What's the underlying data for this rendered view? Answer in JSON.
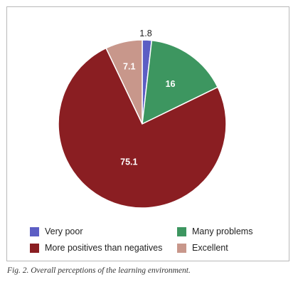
{
  "chart_data": {
    "type": "pie",
    "slices": [
      {
        "label": "Very poor",
        "value": 1.8,
        "value_label": "1.8",
        "color": "#5c5ec4"
      },
      {
        "label": "Many problems",
        "value": 16,
        "value_label": "16",
        "color": "#3d9660"
      },
      {
        "label": "More positives than negatives",
        "value": 75.1,
        "value_label": "75.1",
        "color": "#8a1e22"
      },
      {
        "label": "Excellent",
        "value": 7.1,
        "value_label": "7.1",
        "color": "#c8978b"
      }
    ],
    "start": "12 o'clock",
    "direction": "clockwise"
  },
  "legend": {
    "very_poor": "Very poor",
    "many_problems": "Many problems",
    "more_positives": "More positives than negatives",
    "excellent": "Excellent"
  },
  "caption": "Fig. 2. Overall perceptions of the learning environment."
}
